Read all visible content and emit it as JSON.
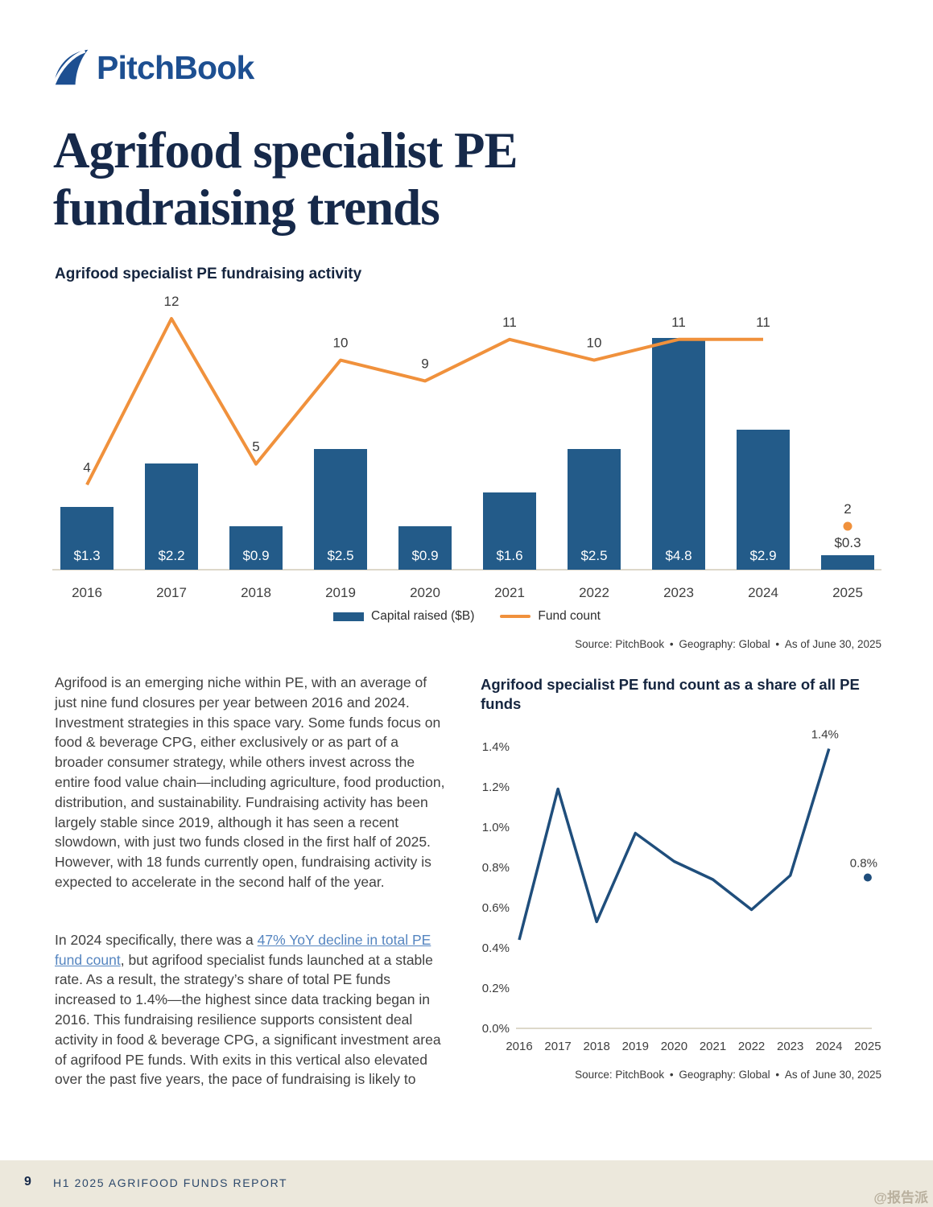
{
  "header": {
    "logo": "PitchBook",
    "title_line1": "Agrifood specialist PE",
    "title_line2": "fundraising trends"
  },
  "colors": {
    "brand_navy": "#16294a",
    "logo_blue": "#1d4f91",
    "bar_blue": "#235b89",
    "line_orange": "#f0913c",
    "line_navy": "#1f4e7c",
    "link_blue": "#5585c0",
    "body_text": "#414141",
    "footer_beige": "#ece8dc"
  },
  "chart_data": [
    {
      "type": "bar",
      "title": "Agrifood specialist PE fundraising activity",
      "categories": [
        "2016",
        "2017",
        "2018",
        "2019",
        "2020",
        "2021",
        "2022",
        "2023",
        "2024",
        "2025"
      ],
      "series": [
        {
          "name": "Capital raised ($B)",
          "type": "bar",
          "values": [
            1.3,
            2.2,
            0.9,
            2.5,
            0.9,
            1.6,
            2.5,
            4.8,
            2.9,
            0.3
          ],
          "labels": [
            "$1.3",
            "$2.2",
            "$0.9",
            "$2.5",
            "$0.9",
            "$1.6",
            "$2.5",
            "$4.8",
            "$2.9",
            "$0.3"
          ],
          "color": "#235b89"
        },
        {
          "name": "Fund count",
          "type": "line",
          "values": [
            4,
            12,
            5,
            10,
            9,
            11,
            10,
            11,
            11,
            2
          ],
          "color": "#f0913c",
          "detached_last_point": true
        }
      ],
      "legend_position": "bottom",
      "grid": false,
      "source": "Source: PitchBook • Geography: Global • As of June 30, 2025"
    },
    {
      "type": "line",
      "title": "Agrifood specialist PE fund count as a share of all PE funds",
      "categories": [
        "2016",
        "2017",
        "2018",
        "2019",
        "2020",
        "2021",
        "2022",
        "2023",
        "2024",
        "2025"
      ],
      "values": [
        0.44,
        1.19,
        0.53,
        0.97,
        0.83,
        0.74,
        0.59,
        0.76,
        1.39,
        0.75
      ],
      "detached_last_point": true,
      "point_labels": [
        {
          "index": 8,
          "text": "1.4%"
        },
        {
          "index": 9,
          "text": "0.8%"
        }
      ],
      "yticks": [
        "0.0%",
        "0.2%",
        "0.4%",
        "0.6%",
        "0.8%",
        "1.0%",
        "1.2%",
        "1.4%"
      ],
      "ylim": [
        0,
        1.4
      ],
      "grid": false,
      "color": "#1f4e7c",
      "source": "Source: PitchBook • Geography: Global • As of June 30, 2025"
    }
  ],
  "body": {
    "para1": "Agrifood is an emerging niche within PE, with an average of just nine fund closures per year between 2016 and 2024. Investment strategies in this space vary. Some funds focus on food & beverage CPG, either exclusively or as part of a broader consumer strategy, while others invest across the entire food value chain—including agriculture, food production, distribution, and sustainability. Fundraising activity has been largely stable since 2019, although it has seen a recent slowdown, with just two funds closed in the first half of 2025. However, with 18 funds currently open, fundraising activity is expected to accelerate in the second half of the year.",
    "para2_before": "In 2024 specifically, there was a ",
    "para2_link": "47% YoY decline in total PE fund count",
    "para2_after": ", but agrifood specialist funds launched at a stable rate. As a result, the strategy’s share of total PE funds increased to 1.4%—the highest since data tracking began in 2016. This fundraising resilience supports consistent deal activity in food & beverage CPG, a significant investment area of agrifood PE funds. With exits in this vertical also elevated over the past five years, the pace of fundraising is likely to"
  },
  "footer": {
    "page_number": "9",
    "report_title": "H1 2025 AGRIFOOD FUNDS REPORT",
    "watermark": "@报告派"
  }
}
